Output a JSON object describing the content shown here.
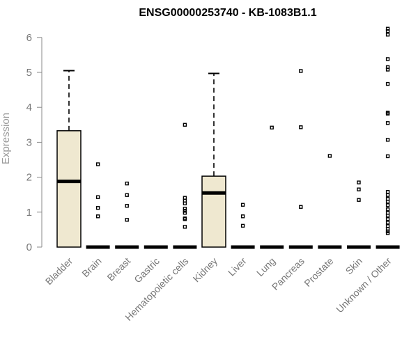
{
  "chart_data": {
    "type": "box",
    "title": "ENSG00000253740 - KB-1083B1.1",
    "xlabel": "",
    "ylabel": "Expression",
    "ylim": [
      0,
      6.3
    ],
    "yticks": [
      "0",
      "1",
      "2",
      "3",
      "4",
      "5",
      "6"
    ],
    "grid": false,
    "box_fill": "#efe8d0",
    "categories": [
      "Bladder",
      "Brain",
      "Breast",
      "Gastric",
      "Hematopoietic cells",
      "Kidney",
      "Liver",
      "Lung",
      "Pancreas",
      "Prostate",
      "Skin",
      "Unknown / Other"
    ],
    "boxes": [
      {
        "q1": 0,
        "median": 1.88,
        "q3": 3.33,
        "whisker_low": 0,
        "whisker_high": 5.05,
        "outliers": []
      },
      {
        "q1": 0,
        "median": 0,
        "q3": 0,
        "whisker_low": 0,
        "whisker_high": 0,
        "outliers": [
          2.37,
          1.43,
          1.12,
          0.88
        ]
      },
      {
        "q1": 0,
        "median": 0,
        "q3": 0,
        "whisker_low": 0,
        "whisker_high": 0,
        "outliers": [
          1.82,
          1.49,
          1.18,
          0.78
        ]
      },
      {
        "q1": 0,
        "median": 0,
        "q3": 0,
        "whisker_low": 0,
        "whisker_high": 0,
        "outliers": []
      },
      {
        "q1": 0,
        "median": 0,
        "q3": 0,
        "whisker_low": 0,
        "whisker_high": 0,
        "outliers": [
          3.5,
          1.41,
          1.33,
          1.25,
          1.1,
          1.04,
          0.98,
          0.82,
          0.8,
          0.58
        ]
      },
      {
        "q1": 0,
        "median": 1.55,
        "q3": 2.03,
        "whisker_low": 0,
        "whisker_high": 4.97,
        "outliers": []
      },
      {
        "q1": 0,
        "median": 0,
        "q3": 0,
        "whisker_low": 0,
        "whisker_high": 0,
        "outliers": [
          1.21,
          0.88,
          0.61
        ]
      },
      {
        "q1": 0,
        "median": 0,
        "q3": 0,
        "whisker_low": 0,
        "whisker_high": 0,
        "outliers": [
          3.42
        ]
      },
      {
        "q1": 0,
        "median": 0,
        "q3": 0,
        "whisker_low": 0,
        "whisker_high": 0,
        "outliers": [
          5.04,
          3.43,
          1.15
        ]
      },
      {
        "q1": 0,
        "median": 0,
        "q3": 0,
        "whisker_low": 0,
        "whisker_high": 0,
        "outliers": [
          2.61
        ]
      },
      {
        "q1": 0,
        "median": 0,
        "q3": 0,
        "whisker_low": 0,
        "whisker_high": 0,
        "outliers": [
          1.85,
          1.65,
          1.35
        ]
      },
      {
        "q1": 0,
        "median": 0,
        "q3": 0,
        "whisker_low": 0,
        "whisker_high": 0,
        "outliers": [
          6.25,
          6.18,
          6.08,
          5.38,
          5.15,
          5.08,
          4.67,
          3.85,
          3.82,
          3.55,
          3.07,
          2.6,
          1.58,
          1.49,
          1.38,
          1.3,
          1.2,
          1.08,
          0.98,
          0.9,
          0.8,
          0.7,
          0.6,
          0.52,
          0.45,
          0.4
        ]
      }
    ]
  }
}
